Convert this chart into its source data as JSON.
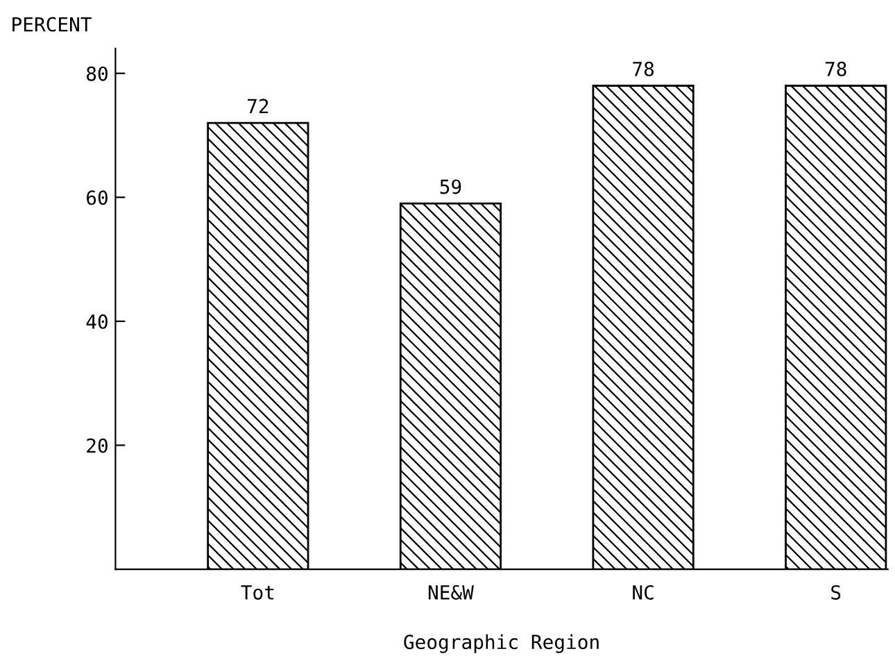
{
  "chart_data": {
    "type": "bar",
    "ylabel": "PERCENT",
    "xlabel": "Geographic Region",
    "categories": [
      "Tot",
      "NE&W",
      "NC",
      "S"
    ],
    "values": [
      72,
      59,
      78,
      78
    ],
    "color": "#000000",
    "ylim": [
      0,
      84
    ],
    "yticks": [
      20,
      40,
      60,
      80
    ],
    "data_labels": true,
    "grid": false,
    "legend": false
  }
}
